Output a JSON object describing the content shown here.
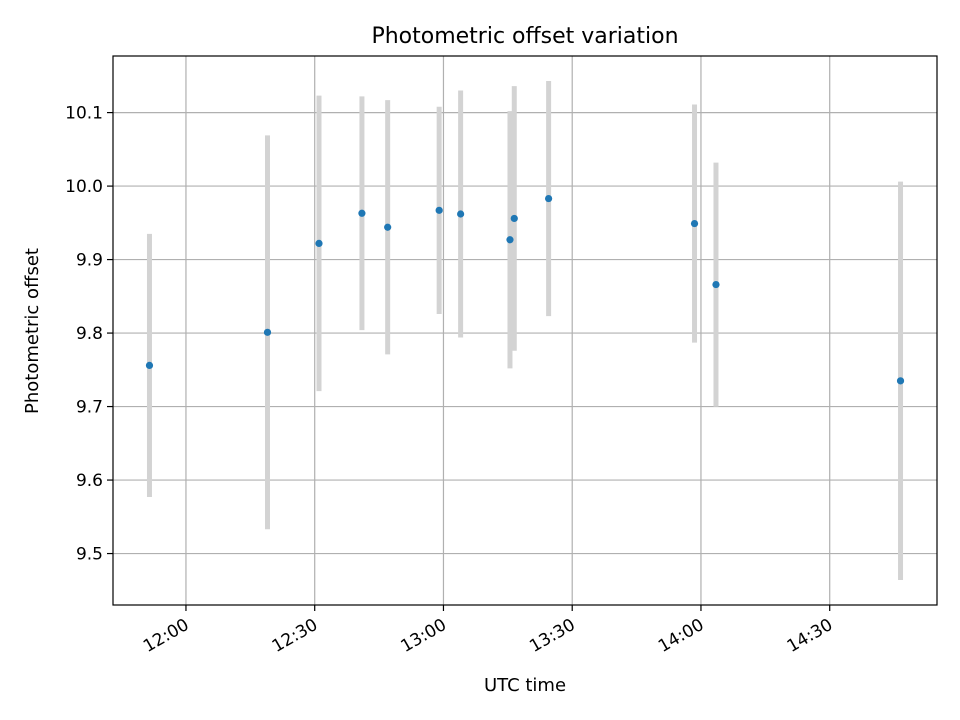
{
  "chart_data": {
    "type": "scatter",
    "title": "Photometric offset variation",
    "xlabel": "UTC time",
    "ylabel": "Photometric offset",
    "xlim": [
      "11:43",
      "14:55"
    ],
    "ylim": [
      9.43,
      10.177
    ],
    "grid": true,
    "x_ticks": [
      "12:00",
      "12:30",
      "13:00",
      "13:30",
      "14:00",
      "14:30"
    ],
    "y_ticks": [
      9.5,
      9.6,
      9.7,
      9.8,
      9.9,
      10.0,
      10.1
    ],
    "y_tick_labels": [
      "9.5",
      "9.6",
      "9.7",
      "9.8",
      "9.9",
      "10.0",
      "10.1"
    ],
    "colors": {
      "point": "#1f77b4",
      "errorbar": "#d3d3d3",
      "grid": "#b0b0b0"
    },
    "points": [
      {
        "x": "11:51:30",
        "y": 9.756,
        "err": 0.179
      },
      {
        "x": "12:19:00",
        "y": 9.801,
        "err": 0.268
      },
      {
        "x": "12:31:00",
        "y": 9.922,
        "err": 0.201
      },
      {
        "x": "12:41:00",
        "y": 9.963,
        "err": 0.159
      },
      {
        "x": "12:47:00",
        "y": 9.944,
        "err": 0.173
      },
      {
        "x": "12:59:00",
        "y": 9.967,
        "err": 0.141
      },
      {
        "x": "13:04:00",
        "y": 9.962,
        "err": 0.168
      },
      {
        "x": "13:15:30",
        "y": 9.927,
        "err": 0.175
      },
      {
        "x": "13:16:30",
        "y": 9.956,
        "err": 0.18
      },
      {
        "x": "13:24:30",
        "y": 9.983,
        "err": 0.16
      },
      {
        "x": "13:58:30",
        "y": 9.949,
        "err": 0.162
      },
      {
        "x": "14:03:30",
        "y": 9.866,
        "err": 0.166
      },
      {
        "x": "14:46:30",
        "y": 9.735,
        "err": 0.271
      }
    ]
  }
}
